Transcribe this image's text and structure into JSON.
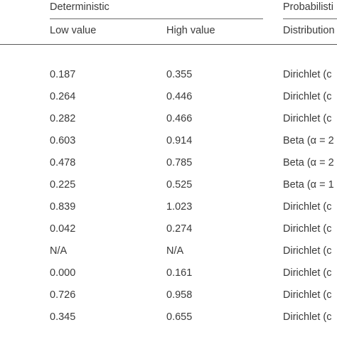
{
  "header": {
    "group_deterministic": "Deterministic",
    "group_probabilistic": "Probabilisti",
    "col_low": "Low value",
    "col_high": "High value",
    "col_distribution": "Distribution"
  },
  "rows": [
    {
      "low": "0.187",
      "high": "0.355",
      "dist": "Dirichlet (c"
    },
    {
      "low": "0.264",
      "high": "0.446",
      "dist": "Dirichlet (c"
    },
    {
      "low": "0.282",
      "high": "0.466",
      "dist": "Dirichlet (c"
    },
    {
      "low": "0.603",
      "high": "0.914",
      "dist": "Beta (α = 2"
    },
    {
      "low": "0.478",
      "high": "0.785",
      "dist": "Beta (α = 2"
    },
    {
      "low": "0.225",
      "high": "0.525",
      "dist": "Beta (α = 1"
    },
    {
      "low": "0.839",
      "high": "1.023",
      "dist": "Dirichlet (c"
    },
    {
      "low": "0.042",
      "high": "0.274",
      "dist": "Dirichlet (c"
    },
    {
      "low": "N/A",
      "high": "N/A",
      "dist": "Dirichlet (c"
    },
    {
      "low": "0.000",
      "high": "0.161",
      "dist": "Dirichlet (c"
    },
    {
      "low": "0.726",
      "high": "0.958",
      "dist": "Dirichlet (c"
    },
    {
      "low": "0.345",
      "high": "0.655",
      "dist": "Dirichlet (c"
    }
  ]
}
